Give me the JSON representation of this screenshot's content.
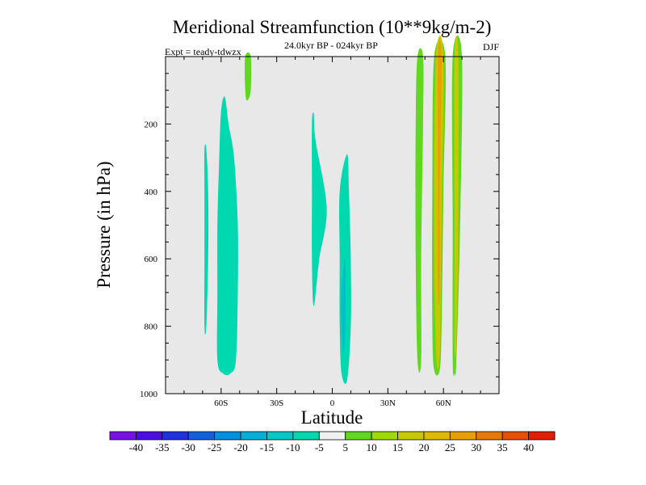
{
  "chart_data": {
    "type": "contour",
    "title": "Meridional Streamfunction (10**9kg/m-2)",
    "subtitle": "24.0kyr BP - 024kyr BP",
    "season": "DJF",
    "experiment": "Expt = teady-tdwzx",
    "xlabel": "Latitude",
    "ylabel": "Pressure (in hPa)",
    "xlim": [
      -90,
      90
    ],
    "ylim": [
      1000,
      0
    ],
    "x_ticks": [
      {
        "value": -60,
        "label": "60S"
      },
      {
        "value": -30,
        "label": "30S"
      },
      {
        "value": 0,
        "label": "0"
      },
      {
        "value": 30,
        "label": "30N"
      },
      {
        "value": 60,
        "label": "60N"
      }
    ],
    "y_ticks": [
      {
        "value": 200,
        "label": "200"
      },
      {
        "value": 400,
        "label": "400"
      },
      {
        "value": 600,
        "label": "600"
      },
      {
        "value": 800,
        "label": "800"
      },
      {
        "value": 1000,
        "label": "1000"
      }
    ],
    "background_level": "-5 to 5",
    "background_color": "#e8e8e8",
    "regions": [
      {
        "name": "sh-thin-cell",
        "level": -10,
        "color": "#00d8b0",
        "outline": [
          [
            -68,
            275
          ],
          [
            -67,
            400
          ],
          [
            -67,
            600
          ],
          [
            -68,
            800
          ],
          [
            -69,
            800
          ],
          [
            -69,
            600
          ],
          [
            -69,
            400
          ],
          [
            -69,
            275
          ]
        ]
      },
      {
        "name": "sh-main-cell",
        "level": -10,
        "color": "#00d8b0",
        "outline": [
          [
            -58,
            120
          ],
          [
            -56,
            200
          ],
          [
            -53,
            300
          ],
          [
            -51,
            500
          ],
          [
            -51,
            700
          ],
          [
            -52,
            900
          ],
          [
            -55,
            940
          ],
          [
            -59,
            940
          ],
          [
            -62,
            900
          ],
          [
            -62,
            700
          ],
          [
            -62,
            500
          ],
          [
            -61,
            300
          ],
          [
            -60,
            160
          ]
        ]
      },
      {
        "name": "sh-top-blob",
        "level": 10,
        "color": "#60d820",
        "outline": [
          [
            -47,
            0
          ],
          [
            -44,
            0
          ],
          [
            -44,
            100
          ],
          [
            -46,
            130
          ],
          [
            -47,
            100
          ]
        ]
      },
      {
        "name": "tropical-south-cell",
        "level": -10,
        "color": "#00d8b0",
        "outline": [
          [
            -10,
            170
          ],
          [
            -9,
            250
          ],
          [
            -3,
            450
          ],
          [
            -7,
            600
          ],
          [
            -10,
            740
          ],
          [
            -11,
            600
          ],
          [
            -11,
            400
          ],
          [
            -11,
            200
          ]
        ]
      },
      {
        "name": "equatorial-cell",
        "level": -10,
        "color": "#00d8b0",
        "outline": [
          [
            8,
            290
          ],
          [
            9,
            400
          ],
          [
            10,
            600
          ],
          [
            10,
            800
          ],
          [
            8,
            960
          ],
          [
            5,
            940
          ],
          [
            4,
            800
          ],
          [
            4,
            600
          ],
          [
            4,
            400
          ]
        ]
      },
      {
        "name": "equatorial-core",
        "level": -15,
        "color": "#00c0c8",
        "outline": [
          [
            7,
            600
          ],
          [
            7,
            800
          ],
          [
            6,
            880
          ],
          [
            5,
            800
          ],
          [
            5,
            700
          ]
        ]
      },
      {
        "name": "nh-band-1",
        "level": 10,
        "color": "#60d820",
        "outline": [
          [
            46,
            0
          ],
          [
            49,
            0
          ],
          [
            49,
            200
          ],
          [
            48,
            600
          ],
          [
            48,
            900
          ],
          [
            46,
            900
          ],
          [
            45,
            600
          ],
          [
            45,
            200
          ]
        ]
      },
      {
        "name": "nh-band-2",
        "level": 10,
        "color": "#60d820",
        "outline": [
          [
            55,
            0
          ],
          [
            61,
            0
          ],
          [
            60,
            400
          ],
          [
            59,
            800
          ],
          [
            58,
            930
          ],
          [
            55,
            930
          ],
          [
            54,
            800
          ],
          [
            54,
            400
          ]
        ]
      },
      {
        "name": "nh-band-2-inner",
        "level": 20,
        "color": "#c8c800",
        "outline": [
          [
            56,
            0
          ],
          [
            60,
            0
          ],
          [
            59,
            500
          ],
          [
            58,
            880
          ],
          [
            56,
            880
          ],
          [
            55,
            500
          ]
        ]
      },
      {
        "name": "nh-band-2-core",
        "level": 30,
        "color": "#e8a000",
        "outline": [
          [
            57,
            0
          ],
          [
            59,
            0
          ],
          [
            58,
            400
          ],
          [
            58,
            700
          ],
          [
            57,
            700
          ],
          [
            57,
            400
          ]
        ]
      },
      {
        "name": "nh-band-3",
        "level": 10,
        "color": "#60d820",
        "outline": [
          [
            65,
            0
          ],
          [
            70,
            0
          ],
          [
            69,
            500
          ],
          [
            67,
            900
          ],
          [
            66,
            940
          ],
          [
            65,
            900
          ],
          [
            65,
            500
          ]
        ]
      },
      {
        "name": "nh-band-3-inner",
        "level": 20,
        "color": "#c8c800",
        "outline": [
          [
            66,
            0
          ],
          [
            68,
            0
          ],
          [
            68,
            500
          ],
          [
            67,
            850
          ],
          [
            66,
            850
          ],
          [
            66,
            500
          ]
        ]
      }
    ],
    "colorbar": {
      "colors": [
        "#7a10e8",
        "#4a10e0",
        "#2030e0",
        "#1060e0",
        "#0090e0",
        "#00b0d8",
        "#00c8c8",
        "#00d8b0",
        "#f2f2f2",
        "#60d820",
        "#a0d800",
        "#c8c800",
        "#e0b800",
        "#e8a000",
        "#e87800",
        "#e85000",
        "#e02000"
      ],
      "labels": [
        "-40",
        "-35",
        "-30",
        "-25",
        "-20",
        "-15",
        "-10",
        "-5",
        "5",
        "10",
        "15",
        "20",
        "25",
        "30",
        "35",
        "40"
      ]
    }
  }
}
